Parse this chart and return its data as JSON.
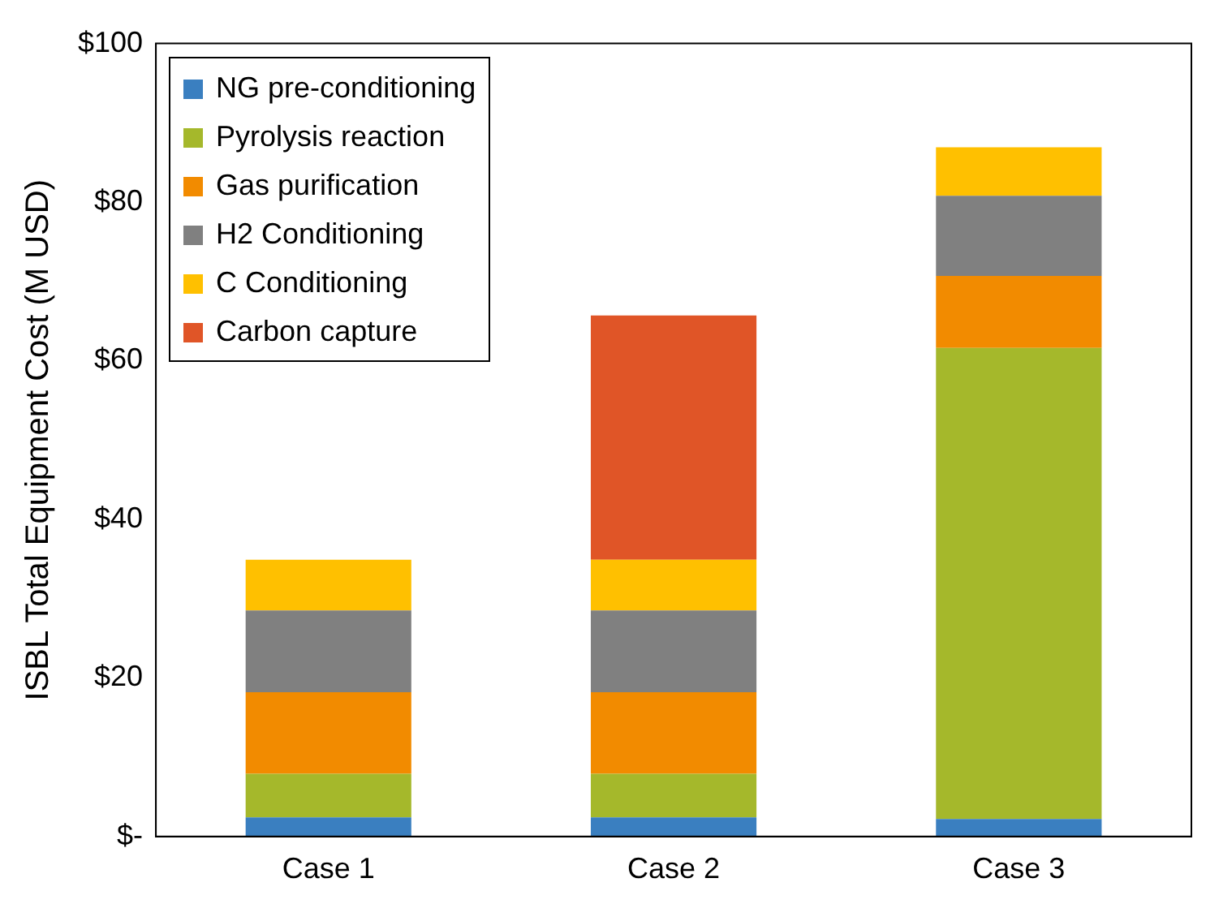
{
  "chart_data": {
    "type": "bar",
    "stacked": true,
    "ylabel": "ISBL Total Equipment Cost (M USD)",
    "categories": [
      "Case 1",
      "Case 2",
      "Case 3"
    ],
    "series": [
      {
        "name": "NG pre-conditioning",
        "color": "#3a7fc0",
        "values": [
          2.4,
          2.4,
          2.2
        ]
      },
      {
        "name": "Pyrolysis reaction",
        "color": "#a5b82b",
        "values": [
          5.5,
          5.5,
          59.4
        ]
      },
      {
        "name": "Gas purification",
        "color": "#f28b00",
        "values": [
          10.3,
          10.3,
          9.1
        ]
      },
      {
        "name": "H2 Conditioning",
        "color": "#808080",
        "values": [
          10.3,
          10.3,
          10.1
        ]
      },
      {
        "name": "C Conditioning",
        "color": "#ffc000",
        "values": [
          6.4,
          6.4,
          6.1
        ]
      },
      {
        "name": "Carbon capture",
        "color": "#e05527",
        "values": [
          null,
          30.8,
          null
        ]
      }
    ],
    "ylim": [
      0,
      100
    ],
    "yticks": [
      {
        "value": 0,
        "label": "$-"
      },
      {
        "value": 20,
        "label": "$20"
      },
      {
        "value": 40,
        "label": "$40"
      },
      {
        "value": 60,
        "label": "$60"
      },
      {
        "value": 80,
        "label": "$80"
      },
      {
        "value": 100,
        "label": "$100"
      }
    ],
    "grid": false,
    "legend": "top left"
  }
}
